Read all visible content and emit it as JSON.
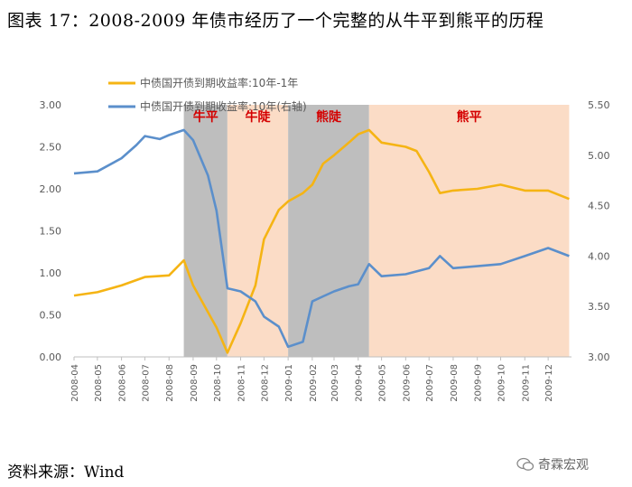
{
  "title": "图表 17：2008-2009 年债市经历了一个完整的从牛平到熊平的历程",
  "source": "资料来源：Wind",
  "watermark": "奇霖宏观",
  "colors": {
    "series1": "#F5B414",
    "series2": "#5B8FCB",
    "gray_band": "#BEBEBE",
    "orange_band": "#FBDCC6",
    "phase_label": "#D40000"
  },
  "chart_data": {
    "type": "line",
    "series": [
      {
        "name": "中债国开债到期收益率:10年-1年",
        "axis": "left",
        "x": [
          "2008-04",
          "2008-05",
          "2008-06",
          "2008-07",
          "2008-08",
          "2008-08-20",
          "2008-09",
          "2008-09-25",
          "2008-10",
          "2008-10-15",
          "2008-11",
          "2008-11-20",
          "2008-12",
          "2008-12-20",
          "2009-01",
          "2009-01-20",
          "2009-02",
          "2009-02-15",
          "2009-03",
          "2009-03-20",
          "2009-04",
          "2009-04-15",
          "2009-05",
          "2009-06",
          "2009-06-15",
          "2009-07",
          "2009-07-15",
          "2009-08",
          "2009-09",
          "2009-10",
          "2009-11",
          "2009-12",
          "2009-12-28"
        ],
        "values": [
          0.73,
          0.77,
          0.85,
          0.95,
          0.97,
          1.15,
          0.85,
          0.45,
          0.35,
          0.05,
          0.4,
          0.85,
          1.4,
          1.75,
          1.85,
          1.95,
          2.05,
          2.3,
          2.4,
          2.55,
          2.65,
          2.7,
          2.55,
          2.5,
          2.45,
          2.2,
          1.95,
          1.98,
          2.0,
          2.05,
          1.98,
          1.98,
          1.88
        ]
      },
      {
        "name": "中债国开债到期收益率:10年(右轴)",
        "axis": "right",
        "x": [
          "2008-04",
          "2008-05",
          "2008-06",
          "2008-06-20",
          "2008-07",
          "2008-07-20",
          "2008-08",
          "2008-08-20",
          "2008-09",
          "2008-09-20",
          "2008-10",
          "2008-10-15",
          "2008-11",
          "2008-11-20",
          "2008-12",
          "2008-12-20",
          "2009-01",
          "2009-01-20",
          "2009-02",
          "2009-02-15",
          "2009-03",
          "2009-03-20",
          "2009-04",
          "2009-04-15",
          "2009-05",
          "2009-06",
          "2009-07",
          "2009-07-15",
          "2009-08",
          "2009-09",
          "2009-10",
          "2009-11",
          "2009-12",
          "2009-12-28"
        ],
        "values": [
          4.82,
          4.84,
          4.97,
          5.1,
          5.19,
          5.16,
          5.2,
          5.25,
          5.15,
          4.8,
          4.45,
          3.68,
          3.65,
          3.55,
          3.4,
          3.3,
          3.1,
          3.15,
          3.55,
          3.6,
          3.65,
          3.7,
          3.72,
          3.92,
          3.8,
          3.82,
          3.88,
          4.0,
          3.88,
          3.9,
          3.92,
          4.0,
          4.08,
          4.0
        ]
      }
    ],
    "x_ticks": [
      "2008-04",
      "2008-05",
      "2008-06",
      "2008-07",
      "2008-08",
      "2008-09",
      "2008-10",
      "2008-11",
      "2008-12",
      "2009-01",
      "2009-02",
      "2009-03",
      "2009-04",
      "2009-05",
      "2009-06",
      "2009-07",
      "2009-08",
      "2009-09",
      "2009-10",
      "2009-11",
      "2009-12"
    ],
    "y_left": {
      "min": 0,
      "max": 3,
      "ticks": [
        "0.00",
        "0.50",
        "1.00",
        "1.50",
        "2.00",
        "2.50",
        "3.00"
      ]
    },
    "y_right": {
      "min": 3,
      "max": 5.5,
      "ticks": [
        "3.00",
        "3.50",
        "4.00",
        "4.50",
        "5.00",
        "5.50"
      ]
    },
    "bands": [
      {
        "label": "牛平",
        "start": "2008-08-20",
        "end": "2008-10-15",
        "style": "gray"
      },
      {
        "label": "牛陡",
        "start": "2008-10-15",
        "end": "2009-01-01",
        "style": "orange"
      },
      {
        "label": "熊陡",
        "start": "2009-01-01",
        "end": "2009-04-15",
        "style": "gray"
      },
      {
        "label": "熊平",
        "start": "2009-04-15",
        "end": "2009-12-28",
        "style": "orange"
      }
    ],
    "legend_position": "top",
    "grid": false
  }
}
